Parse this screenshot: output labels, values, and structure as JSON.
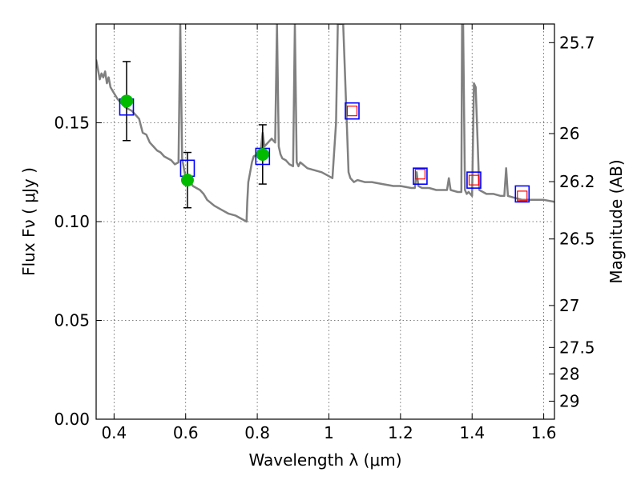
{
  "chart_data": {
    "type": "scatter",
    "xlabel": "Wavelength  λ (μm)",
    "ylabel": "Flux  Fν  ( μJy )",
    "y2label": "Magnitude (AB)",
    "xlim": [
      0.35,
      1.63
    ],
    "ylim": [
      0.0,
      0.2
    ],
    "grid": true,
    "x_ticks": [
      0.4,
      0.6,
      0.8,
      1.0,
      1.2,
      1.4,
      1.6
    ],
    "x_tick_labels": [
      "0.4",
      "0.6",
      "0.8",
      "1",
      "1.2",
      "1.4",
      "1.6"
    ],
    "y_ticks": [
      0.0,
      0.05,
      0.1,
      0.15
    ],
    "y_tick_labels": [
      "0.00",
      "0.05",
      "0.10",
      "0.15"
    ],
    "y2_ticks": [
      25.7,
      26,
      26.2,
      26.5,
      27,
      27.5,
      28,
      29
    ],
    "y2_tick_labels": [
      "25.7",
      "26",
      "26.2",
      "26.5",
      "27",
      "27.5",
      "28",
      "29"
    ],
    "colors": {
      "model_line": "#808080",
      "observed_points": "#00bb00",
      "model_bands": "#0000ff",
      "synthetic_bands": "#ff0000",
      "errorbars": "#000000",
      "grid": "#555555"
    },
    "series": [
      {
        "kind": "model_spectrum",
        "x": [
          0.35,
          0.36,
          0.365,
          0.37,
          0.375,
          0.38,
          0.385,
          0.39,
          0.4,
          0.41,
          0.42,
          0.43,
          0.44,
          0.45,
          0.46,
          0.47,
          0.48,
          0.49,
          0.5,
          0.51,
          0.52,
          0.53,
          0.54,
          0.55,
          0.56,
          0.57,
          0.58,
          0.585,
          0.59,
          0.595,
          0.6,
          0.605,
          0.61,
          0.62,
          0.63,
          0.64,
          0.65,
          0.66,
          0.68,
          0.7,
          0.72,
          0.74,
          0.75,
          0.76,
          0.77,
          0.772,
          0.775,
          0.78,
          0.785,
          0.79,
          0.8,
          0.81,
          0.815,
          0.82,
          0.83,
          0.84,
          0.85,
          0.855,
          0.86,
          0.865,
          0.87,
          0.88,
          0.89,
          0.9,
          0.905,
          0.91,
          0.915,
          0.92,
          0.94,
          0.96,
          0.98,
          1.0,
          1.01,
          1.02,
          1.025,
          1.03,
          1.04,
          1.05,
          1.055,
          1.06,
          1.065,
          1.07,
          1.08,
          1.1,
          1.12,
          1.15,
          1.18,
          1.2,
          1.23,
          1.24,
          1.245,
          1.25,
          1.26,
          1.28,
          1.3,
          1.32,
          1.33,
          1.335,
          1.34,
          1.36,
          1.37,
          1.372,
          1.375,
          1.38,
          1.385,
          1.39,
          1.395,
          1.4,
          1.405,
          1.41,
          1.42,
          1.44,
          1.46,
          1.48,
          1.49,
          1.495,
          1.5,
          1.52,
          1.54,
          1.56,
          1.58,
          1.6,
          1.63
        ],
        "y": [
          0.182,
          0.172,
          0.175,
          0.173,
          0.176,
          0.17,
          0.173,
          0.168,
          0.165,
          0.162,
          0.16,
          0.158,
          0.157,
          0.156,
          0.154,
          0.152,
          0.145,
          0.144,
          0.14,
          0.138,
          0.136,
          0.135,
          0.133,
          0.132,
          0.131,
          0.129,
          0.13,
          0.2,
          0.132,
          0.127,
          0.122,
          0.124,
          0.121,
          0.118,
          0.117,
          0.116,
          0.114,
          0.111,
          0.108,
          0.106,
          0.104,
          0.103,
          0.102,
          0.101,
          0.1,
          0.11,
          0.12,
          0.125,
          0.13,
          0.133,
          0.134,
          0.137,
          0.145,
          0.138,
          0.14,
          0.142,
          0.14,
          0.2,
          0.138,
          0.134,
          0.132,
          0.131,
          0.129,
          0.128,
          0.2,
          0.13,
          0.128,
          0.13,
          0.127,
          0.126,
          0.125,
          0.123,
          0.122,
          0.15,
          0.2,
          0.2,
          0.2,
          0.15,
          0.125,
          0.122,
          0.121,
          0.12,
          0.121,
          0.12,
          0.12,
          0.119,
          0.118,
          0.118,
          0.117,
          0.117,
          0.125,
          0.118,
          0.117,
          0.117,
          0.116,
          0.116,
          0.116,
          0.122,
          0.116,
          0.115,
          0.115,
          0.2,
          0.2,
          0.116,
          0.114,
          0.115,
          0.114,
          0.113,
          0.17,
          0.168,
          0.116,
          0.114,
          0.114,
          0.113,
          0.113,
          0.127,
          0.113,
          0.112,
          0.111,
          0.111,
          0.111,
          0.111,
          0.11
        ]
      },
      {
        "kind": "observed",
        "x": [
          0.435,
          0.605,
          0.815
        ],
        "y": [
          0.161,
          0.121,
          0.134
        ],
        "yerr": [
          0.02,
          0.014,
          0.015
        ]
      },
      {
        "kind": "model_band_flux",
        "x": [
          0.435,
          0.605,
          0.815,
          1.065,
          1.255,
          1.405,
          1.54
        ],
        "y": [
          0.158,
          0.127,
          0.133,
          0.156,
          0.123,
          0.121,
          0.114
        ]
      },
      {
        "kind": "synthetic_band_flux",
        "x": [
          1.065,
          1.255,
          1.405,
          1.54
        ],
        "y": [
          0.156,
          0.124,
          0.121,
          0.113
        ]
      }
    ]
  }
}
